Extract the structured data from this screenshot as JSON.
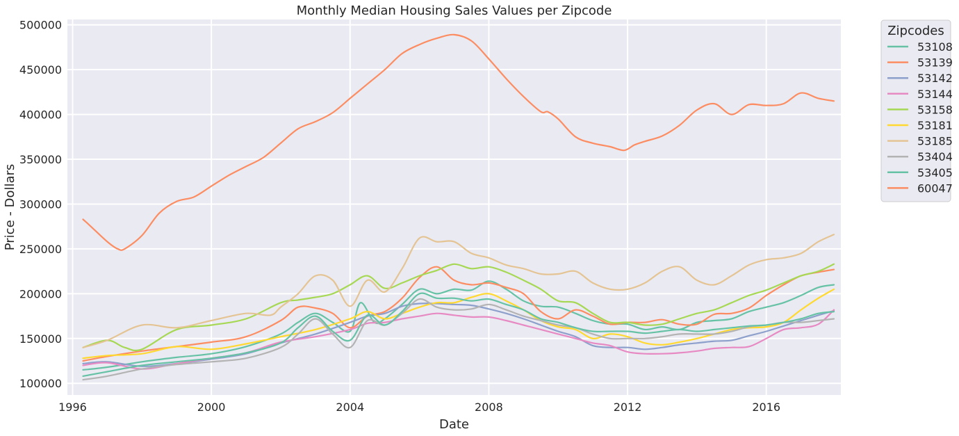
{
  "chart_data": {
    "type": "line",
    "title": "Monthly Median Housing Sales Values per Zipcode",
    "xlabel": "Date",
    "ylabel": "Price - Dollars",
    "xlim": [
      1995.85,
      2018.15
    ],
    "ylim": [
      87000,
      506000
    ],
    "x_ticks": [
      1996,
      2000,
      2004,
      2008,
      2012,
      2016
    ],
    "y_ticks": [
      100000,
      150000,
      200000,
      250000,
      300000,
      350000,
      400000,
      450000,
      500000
    ],
    "grid": true,
    "legend_title": "Zipcodes",
    "legend_position": "outside-top-right",
    "series": [
      {
        "name": "53108",
        "color": "#66c2a5",
        "x": [
          1996.3,
          1997.0,
          1998.0,
          1999.0,
          2000.0,
          2001.0,
          2002.0,
          2002.5,
          2003.0,
          2003.5,
          2004.0,
          2004.3,
          2004.7,
          2005.0,
          2005.5,
          2006.0,
          2006.5,
          2007.0,
          2007.5,
          2008.0,
          2008.5,
          2009.0,
          2009.5,
          2010.0,
          2010.5,
          2011.0,
          2011.5,
          2012.0,
          2012.5,
          2013.0,
          2013.5,
          2014.0,
          2014.5,
          2015.0,
          2015.5,
          2016.0,
          2016.5,
          2017.0,
          2017.5,
          2017.95
        ],
        "y": [
          115000,
          118000,
          124000,
          129000,
          133000,
          141000,
          155000,
          168000,
          178000,
          168000,
          158000,
          190000,
          168000,
          172000,
          188000,
          205000,
          200000,
          205000,
          204000,
          214000,
          205000,
          192000,
          186000,
          185000,
          178000,
          170000,
          166000,
          166000,
          160000,
          163000,
          160000,
          168000,
          170000,
          172000,
          180000,
          185000,
          190000,
          198000,
          207000,
          210000
        ]
      },
      {
        "name": "53139",
        "color": "#fc8d62",
        "x": [
          1996.3,
          1997.0,
          1998.0,
          1999.0,
          2000.0,
          2001.0,
          2002.0,
          2002.5,
          2003.0,
          2003.5,
          2004.0,
          2004.5,
          2005.0,
          2005.5,
          2006.0,
          2006.5,
          2007.0,
          2007.5,
          2008.0,
          2008.5,
          2009.0,
          2009.5,
          2010.0,
          2010.5,
          2011.0,
          2011.5,
          2012.0,
          2012.5,
          2013.0,
          2013.5,
          2014.0,
          2014.5,
          2015.0,
          2015.5,
          2016.0,
          2016.5,
          2017.0,
          2017.5,
          2017.95
        ],
        "y": [
          125000,
          130000,
          136000,
          141000,
          146000,
          152000,
          170000,
          185000,
          184000,
          178000,
          162000,
          175000,
          180000,
          195000,
          218000,
          230000,
          215000,
          210000,
          212000,
          207000,
          200000,
          180000,
          172000,
          182000,
          175000,
          166000,
          168000,
          168000,
          171000,
          166000,
          166000,
          177000,
          178000,
          184000,
          198000,
          210000,
          220000,
          224000,
          227000
        ]
      },
      {
        "name": "53142",
        "color": "#8da0cb",
        "x": [
          1996.3,
          1997.0,
          1998.0,
          1999.0,
          2000.0,
          2001.0,
          2002.0,
          2003.0,
          2004.0,
          2004.5,
          2005.0,
          2005.5,
          2006.0,
          2006.5,
          2007.0,
          2007.5,
          2008.0,
          2008.5,
          2009.0,
          2009.5,
          2010.0,
          2010.5,
          2011.0,
          2011.5,
          2012.0,
          2012.5,
          2013.0,
          2013.5,
          2014.0,
          2014.5,
          2015.0,
          2015.5,
          2016.0,
          2016.5,
          2017.0,
          2017.5,
          2017.95
        ],
        "y": [
          122000,
          124000,
          119000,
          122000,
          127000,
          133000,
          145000,
          155000,
          168000,
          175000,
          178000,
          186000,
          189000,
          189000,
          188000,
          187000,
          183000,
          178000,
          172000,
          165000,
          158000,
          152000,
          142000,
          140000,
          140000,
          138000,
          140000,
          143000,
          145000,
          147000,
          148000,
          153000,
          158000,
          164000,
          170000,
          176000,
          181000
        ]
      },
      {
        "name": "53144",
        "color": "#e78ac3",
        "x": [
          1996.3,
          1997.0,
          1998.0,
          1999.0,
          2000.0,
          2001.0,
          2002.0,
          2003.0,
          2004.0,
          2004.5,
          2005.0,
          2005.5,
          2006.0,
          2006.5,
          2007.0,
          2007.5,
          2008.0,
          2008.5,
          2009.0,
          2009.5,
          2010.0,
          2010.5,
          2011.0,
          2011.5,
          2012.0,
          2012.5,
          2013.0,
          2013.5,
          2014.0,
          2014.5,
          2015.0,
          2015.5,
          2016.0,
          2016.5,
          2017.0,
          2017.5,
          2017.95
        ],
        "y": [
          120000,
          123000,
          116000,
          122000,
          128000,
          134000,
          146000,
          152000,
          160000,
          167000,
          168000,
          172000,
          175000,
          178000,
          176000,
          174000,
          174000,
          170000,
          165000,
          160000,
          155000,
          150000,
          145000,
          142000,
          135000,
          133000,
          133000,
          134000,
          136000,
          139000,
          140000,
          141000,
          150000,
          160000,
          162000,
          166000,
          182000
        ]
      },
      {
        "name": "53158",
        "color": "#a6d854",
        "x": [
          1996.3,
          1997.0,
          1997.5,
          1998.0,
          1999.0,
          2000.0,
          2001.0,
          2002.0,
          2002.5,
          2003.0,
          2003.5,
          2004.0,
          2004.5,
          2005.0,
          2005.5,
          2006.0,
          2006.5,
          2007.0,
          2007.5,
          2008.0,
          2008.5,
          2009.0,
          2009.5,
          2010.0,
          2010.5,
          2011.0,
          2011.5,
          2012.0,
          2012.5,
          2013.0,
          2013.5,
          2014.0,
          2014.5,
          2015.0,
          2015.5,
          2016.0,
          2016.5,
          2017.0,
          2017.5,
          2017.95
        ],
        "y": [
          140000,
          148000,
          140000,
          138000,
          160000,
          165000,
          172000,
          190000,
          193000,
          196000,
          200000,
          210000,
          220000,
          206000,
          212000,
          220000,
          226000,
          233000,
          228000,
          230000,
          224000,
          215000,
          205000,
          192000,
          190000,
          178000,
          168000,
          168000,
          165000,
          166000,
          172000,
          178000,
          182000,
          190000,
          198000,
          204000,
          212000,
          220000,
          225000,
          233000
        ]
      },
      {
        "name": "53181",
        "color": "#ffd92f",
        "x": [
          1996.3,
          1997.0,
          1998.0,
          1999.0,
          2000.0,
          2001.0,
          2002.0,
          2003.0,
          2004.0,
          2004.5,
          2005.0,
          2005.5,
          2006.0,
          2006.5,
          2007.0,
          2007.5,
          2008.0,
          2008.5,
          2009.0,
          2009.5,
          2010.0,
          2010.5,
          2011.0,
          2011.5,
          2012.0,
          2012.5,
          2013.0,
          2013.5,
          2014.0,
          2014.5,
          2015.0,
          2015.5,
          2016.0,
          2016.5,
          2017.0,
          2017.5,
          2017.95
        ],
        "y": [
          128000,
          131000,
          133000,
          141000,
          138000,
          144000,
          152000,
          160000,
          172000,
          180000,
          172000,
          178000,
          185000,
          190000,
          190000,
          196000,
          200000,
          192000,
          182000,
          170000,
          163000,
          160000,
          150000,
          155000,
          152000,
          145000,
          143000,
          146000,
          150000,
          155000,
          160000,
          162000,
          163000,
          168000,
          182000,
          195000,
          205000
        ]
      },
      {
        "name": "53185",
        "color": "#e5c494",
        "x": [
          1996.3,
          1997.0,
          1998.0,
          1999.0,
          2000.0,
          2001.0,
          2001.7,
          2002.0,
          2002.5,
          2003.0,
          2003.5,
          2004.0,
          2004.5,
          2005.0,
          2005.5,
          2006.0,
          2006.5,
          2007.0,
          2007.5,
          2008.0,
          2008.5,
          2009.0,
          2009.5,
          2010.0,
          2010.5,
          2011.0,
          2011.5,
          2012.0,
          2012.5,
          2013.0,
          2013.5,
          2014.0,
          2014.5,
          2015.0,
          2015.5,
          2016.0,
          2016.5,
          2017.0,
          2017.5,
          2017.95
        ],
        "y": [
          140000,
          148000,
          165000,
          162000,
          170000,
          178000,
          176000,
          185000,
          200000,
          220000,
          215000,
          186000,
          215000,
          202000,
          228000,
          262000,
          258000,
          258000,
          245000,
          240000,
          232000,
          228000,
          222000,
          222000,
          225000,
          212000,
          205000,
          205000,
          212000,
          225000,
          230000,
          215000,
          210000,
          220000,
          232000,
          238000,
          240000,
          245000,
          258000,
          266000
        ]
      },
      {
        "name": "53404",
        "color": "#b3b3b3",
        "x": [
          1996.3,
          1997.0,
          1998.0,
          1999.0,
          2000.0,
          2001.0,
          2002.0,
          2002.5,
          2003.0,
          2003.5,
          2004.0,
          2004.5,
          2005.0,
          2005.5,
          2006.0,
          2006.5,
          2007.0,
          2007.5,
          2008.0,
          2008.5,
          2009.0,
          2009.5,
          2010.0,
          2010.5,
          2011.0,
          2011.5,
          2012.0,
          2012.5,
          2013.0,
          2013.5,
          2014.0,
          2014.5,
          2015.0,
          2015.5,
          2016.0,
          2016.5,
          2017.0,
          2017.5,
          2017.95
        ],
        "y": [
          104000,
          108000,
          116000,
          121000,
          124000,
          128000,
          140000,
          155000,
          172000,
          155000,
          140000,
          170000,
          165000,
          178000,
          194000,
          185000,
          182000,
          183000,
          188000,
          182000,
          175000,
          170000,
          165000,
          162000,
          155000,
          150000,
          150000,
          150000,
          152000,
          155000,
          155000,
          155000,
          158000,
          163000,
          165000,
          168000,
          168000,
          170000,
          172000
        ]
      },
      {
        "name": "53405",
        "color": "#66c2a5",
        "x": [
          1996.3,
          1997.0,
          1998.0,
          1999.0,
          2000.0,
          2001.0,
          2002.0,
          2002.5,
          2003.0,
          2003.5,
          2004.0,
          2004.5,
          2005.0,
          2005.5,
          2006.0,
          2006.5,
          2007.0,
          2007.5,
          2008.0,
          2008.5,
          2009.0,
          2009.5,
          2010.0,
          2010.5,
          2011.0,
          2011.5,
          2012.0,
          2012.5,
          2013.0,
          2013.5,
          2014.0,
          2014.5,
          2015.0,
          2015.5,
          2016.0,
          2016.5,
          2017.0,
          2017.5,
          2017.95
        ],
        "y": [
          108000,
          113000,
          120000,
          124000,
          128000,
          134000,
          145000,
          162000,
          175000,
          158000,
          148000,
          176000,
          165000,
          180000,
          200000,
          195000,
          195000,
          192000,
          194000,
          188000,
          182000,
          172000,
          168000,
          162000,
          158000,
          158000,
          158000,
          156000,
          158000,
          160000,
          158000,
          160000,
          162000,
          164000,
          165000,
          168000,
          172000,
          178000,
          180000
        ]
      },
      {
        "name": "60047",
        "color": "#fc8d62",
        "x": [
          1996.3,
          1996.5,
          1997.0,
          1997.3,
          1997.5,
          1998.0,
          1998.5,
          1999.0,
          1999.5,
          2000.0,
          2000.5,
          2001.0,
          2001.5,
          2002.0,
          2002.5,
          2003.0,
          2003.5,
          2004.0,
          2004.5,
          2005.0,
          2005.5,
          2006.0,
          2006.5,
          2007.0,
          2007.5,
          2008.0,
          2008.5,
          2009.0,
          2009.5,
          2009.7,
          2010.0,
          2010.5,
          2011.0,
          2011.5,
          2011.9,
          2012.2,
          2012.5,
          2013.0,
          2013.5,
          2014.0,
          2014.5,
          2015.0,
          2015.5,
          2016.0,
          2016.5,
          2017.0,
          2017.5,
          2017.95
        ],
        "y": [
          283000,
          276000,
          258000,
          250000,
          250000,
          265000,
          290000,
          303000,
          308000,
          320000,
          332000,
          342000,
          352000,
          368000,
          384000,
          392000,
          402000,
          418000,
          434000,
          450000,
          468000,
          478000,
          485000,
          489000,
          482000,
          462000,
          440000,
          420000,
          403000,
          403000,
          395000,
          375000,
          368000,
          364000,
          360000,
          366000,
          370000,
          376000,
          388000,
          405000,
          412000,
          400000,
          411000,
          410000,
          412000,
          424000,
          418000,
          415000
        ]
      }
    ]
  }
}
